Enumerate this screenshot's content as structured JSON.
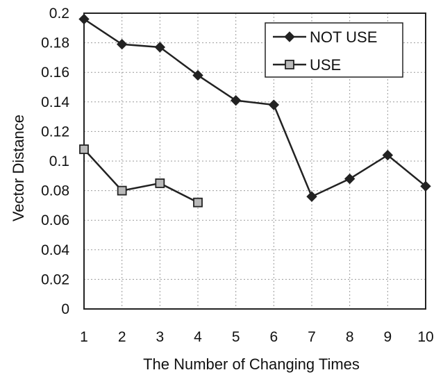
{
  "chart_data": {
    "type": "line",
    "title": "",
    "xlabel": "The Number of Changing Times",
    "ylabel": "Vector Distance",
    "x": [
      1,
      2,
      3,
      4,
      5,
      6,
      7,
      8,
      9,
      10
    ],
    "x_tick_labels": [
      "1",
      "2",
      "3",
      "4",
      "5",
      "6",
      "7",
      "8",
      "9",
      "10"
    ],
    "xlim": [
      1,
      10
    ],
    "ylim": [
      0,
      0.2
    ],
    "y_ticks": [
      0,
      0.02,
      0.04,
      0.06,
      0.08,
      0.1,
      0.12,
      0.14,
      0.16,
      0.18,
      0.2
    ],
    "y_tick_labels": [
      "0",
      "0.02",
      "0.04",
      "0.06",
      "0.08",
      "0.1",
      "0.12",
      "0.14",
      "0.16",
      "0.18",
      "0.2"
    ],
    "grid": true,
    "legend_position": "top-right",
    "series": [
      {
        "name": "NOT USE",
        "marker": "diamond",
        "color": "#222222",
        "x": [
          1,
          2,
          3,
          4,
          5,
          6,
          7,
          8,
          9,
          10
        ],
        "values": [
          0.196,
          0.179,
          0.177,
          0.158,
          0.141,
          0.138,
          0.076,
          0.088,
          0.104,
          0.083
        ]
      },
      {
        "name": "USE",
        "marker": "square",
        "color": "#222222",
        "x": [
          1,
          2,
          3,
          4
        ],
        "values": [
          0.108,
          0.08,
          0.085,
          0.072
        ]
      }
    ]
  }
}
